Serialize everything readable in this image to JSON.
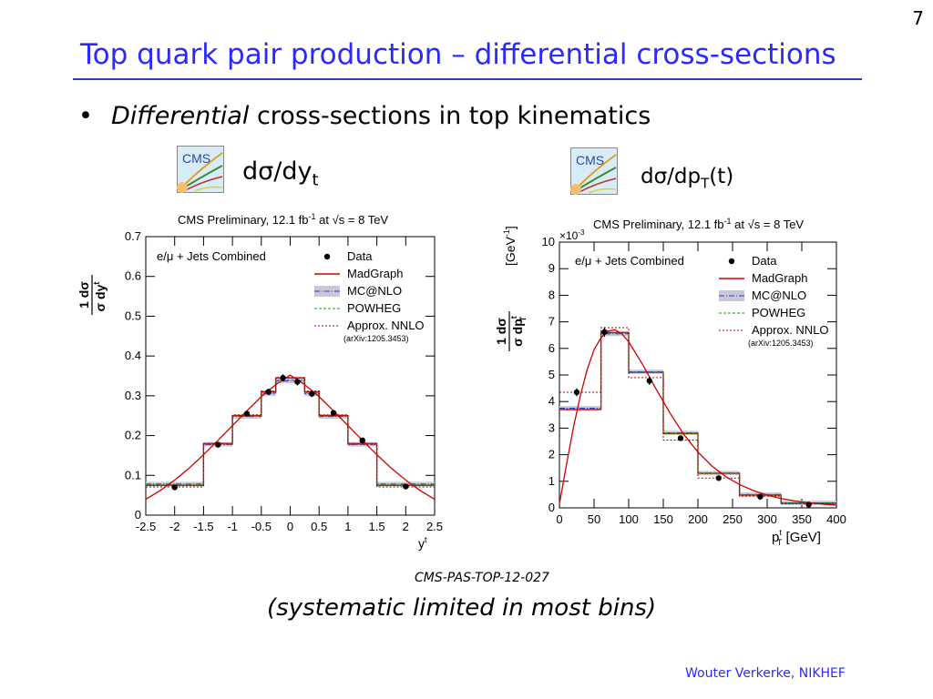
{
  "slide": {
    "number": "7",
    "title": "Top quark pair production – differential cross-sections",
    "bullet_italic": "Differential",
    "bullet_rest": " cross-sections in top kinematics",
    "left_label_main": "dσ/dy",
    "left_label_sub": "t",
    "right_label_pre": "dσ/dp",
    "right_label_sub": "T",
    "right_label_post": "(t)",
    "reference": "CMS-PAS-TOP-12-027",
    "note": "(systematic limited in most bins)",
    "footer": "Wouter Verkerke, NIKHEF",
    "logo_text": "CMS",
    "colors": {
      "title": "#2a2aff",
      "rule": "#3535c8",
      "madgraph": "#cc0000",
      "mcatnlo": "#3333cc",
      "powheg": "#00aa00",
      "nnlo": "#aa0000",
      "band": "#c8c8d8"
    }
  },
  "chart_data": [
    {
      "type": "line",
      "title": "CMS Preliminary, 12.1 fb⁻¹ at √s = 8 TeV",
      "title_parts": {
        "a": "CMS Preliminary, 12.1 fb",
        "b": "-1",
        "c": " at ",
        "d": "√s",
        "e": " = 8 TeV"
      },
      "channel": "e/μ + Jets Combined",
      "xlabel": "y",
      "xlabel_sup": "t",
      "ylabel": {
        "num": "1 dσ",
        "den": "σ dy",
        "sup": "t"
      },
      "xlim": [
        -2.5,
        2.5
      ],
      "ylim": [
        0,
        0.7
      ],
      "xticks": [
        -2.5,
        -2,
        -1.5,
        -1,
        -0.5,
        0,
        0.5,
        1,
        1.5,
        2,
        2.5
      ],
      "xtick_labels": [
        "-2.5",
        "-2",
        "-1.5",
        "-1",
        "-0.5",
        "0",
        "0.5",
        "1",
        "1.5",
        "2",
        "2.5"
      ],
      "yticks": [
        0,
        0.1,
        0.2,
        0.3,
        0.4,
        0.5,
        0.6,
        0.7
      ],
      "ytick_labels": [
        "0",
        "0.1",
        "0.2",
        "0.3",
        "0.4",
        "0.5",
        "0.6",
        "0.7"
      ],
      "legend": [
        "Data",
        "MadGraph",
        "MC@NLO",
        "POWHEG",
        "Approx. NNLO"
      ],
      "legend_note": "(arXiv:1205.3453)",
      "bin_edges": [
        -2.5,
        -1.5,
        -1.0,
        -0.5,
        -0.25,
        0,
        0.25,
        0.5,
        1.0,
        1.5,
        2.5
      ],
      "data": {
        "x": [
          -2.0,
          -1.25,
          -0.75,
          -0.375,
          -0.125,
          0.125,
          0.375,
          0.75,
          1.25,
          2.0
        ],
        "y": [
          0.07,
          0.177,
          0.255,
          0.31,
          0.345,
          0.335,
          0.305,
          0.257,
          0.188,
          0.072
        ],
        "err": [
          0.004,
          0.006,
          0.007,
          0.008,
          0.009,
          0.009,
          0.008,
          0.007,
          0.006,
          0.004
        ]
      },
      "series": [
        {
          "name": "MadGraph",
          "values": [
            0.075,
            0.18,
            0.25,
            0.31,
            0.345,
            0.345,
            0.31,
            0.25,
            0.18,
            0.075
          ]
        },
        {
          "name": "MC@NLO",
          "values": [
            0.078,
            0.178,
            0.248,
            0.305,
            0.337,
            0.337,
            0.305,
            0.248,
            0.178,
            0.078
          ]
        },
        {
          "name": "POWHEG",
          "values": [
            0.076,
            0.179,
            0.249,
            0.307,
            0.34,
            0.34,
            0.307,
            0.249,
            0.179,
            0.076
          ]
        },
        {
          "name": "Approx. NNLO",
          "values": [
            0.071,
            0.178,
            0.252,
            0.312,
            0.346,
            0.346,
            0.312,
            0.252,
            0.178,
            0.071
          ]
        }
      ],
      "curve": {
        "x": [
          -2.5,
          -2.25,
          -2.0,
          -1.75,
          -1.5,
          -1.25,
          -1.0,
          -0.75,
          -0.5,
          -0.25,
          0,
          0.25,
          0.5,
          0.75,
          1.0,
          1.25,
          1.5,
          1.75,
          2.0,
          2.25,
          2.5
        ],
        "y": [
          0.04,
          0.062,
          0.088,
          0.118,
          0.152,
          0.188,
          0.225,
          0.262,
          0.298,
          0.328,
          0.352,
          0.328,
          0.298,
          0.262,
          0.225,
          0.188,
          0.152,
          0.118,
          0.088,
          0.062,
          0.04
        ]
      },
      "grid": false
    },
    {
      "type": "line",
      "title": "CMS Preliminary, 12.1 fb⁻¹ at √s = 8 TeV",
      "title_parts": {
        "a": "CMS Preliminary, 12.1 fb",
        "b": "-1",
        "c": " at ",
        "d": "√s",
        "e": " = 8 TeV"
      },
      "channel": "e/μ + Jets Combined",
      "xlabel": "p",
      "xlabel_sup": "t",
      "xlabel_sub": "T",
      "xlabel_unit": " [GeV]",
      "ylabel": {
        "num": "1 dσ",
        "den": "σ dp",
        "sup": "t",
        "sub": "T",
        "unit": "[GeV",
        "unit_sup": "-1",
        "unit_close": "]"
      },
      "multiplier": "×10",
      "multiplier_sup": "-3",
      "xlim": [
        0,
        400
      ],
      "ylim": [
        0,
        10
      ],
      "xticks": [
        0,
        50,
        100,
        150,
        200,
        250,
        300,
        350,
        400
      ],
      "xtick_labels": [
        "0",
        "50",
        "100",
        "150",
        "200",
        "250",
        "300",
        "350",
        "400"
      ],
      "yticks": [
        0,
        1,
        2,
        3,
        4,
        5,
        6,
        7,
        8,
        9,
        10
      ],
      "ytick_labels": [
        "0",
        "1",
        "2",
        "3",
        "4",
        "5",
        "6",
        "7",
        "8",
        "9",
        "10"
      ],
      "legend": [
        "Data",
        "MadGraph",
        "MC@NLO",
        "POWHEG",
        "Approx. NNLO"
      ],
      "legend_note": "(arXiv:1205.3453)",
      "bin_edges": [
        0,
        60,
        100,
        150,
        200,
        260,
        320,
        400
      ],
      "data": {
        "x": [
          25,
          65,
          130,
          175,
          230,
          290,
          360
        ],
        "y": [
          4.35,
          6.62,
          4.78,
          2.62,
          1.12,
          0.42,
          0.12
        ],
        "err": [
          0.15,
          0.18,
          0.15,
          0.1,
          0.06,
          0.04,
          0.02
        ]
      },
      "series": [
        {
          "name": "MadGraph",
          "values": [
            3.7,
            6.6,
            5.1,
            2.8,
            1.3,
            0.48,
            0.18
          ]
        },
        {
          "name": "MC@NLO",
          "values": [
            3.75,
            6.55,
            5.12,
            2.82,
            1.31,
            0.5,
            0.19
          ]
        },
        {
          "name": "POWHEG",
          "values": [
            3.72,
            6.58,
            5.1,
            2.8,
            1.3,
            0.49,
            0.18
          ]
        },
        {
          "name": "Approx. NNLO",
          "values": [
            4.35,
            6.78,
            4.9,
            2.55,
            1.12,
            0.44,
            0.15
          ]
        }
      ],
      "curve": {
        "x": [
          0,
          10,
          20,
          30,
          40,
          50,
          60,
          70,
          80,
          90,
          100,
          120,
          140,
          160,
          180,
          200,
          220,
          240,
          260,
          280,
          300,
          320,
          340,
          360,
          380,
          400
        ],
        "y": [
          0.15,
          1.6,
          3.0,
          4.2,
          5.2,
          5.95,
          6.4,
          6.65,
          6.7,
          6.55,
          6.25,
          5.4,
          4.45,
          3.55,
          2.75,
          2.1,
          1.58,
          1.18,
          0.88,
          0.65,
          0.48,
          0.35,
          0.26,
          0.19,
          0.14,
          0.1
        ]
      },
      "grid": false
    }
  ]
}
